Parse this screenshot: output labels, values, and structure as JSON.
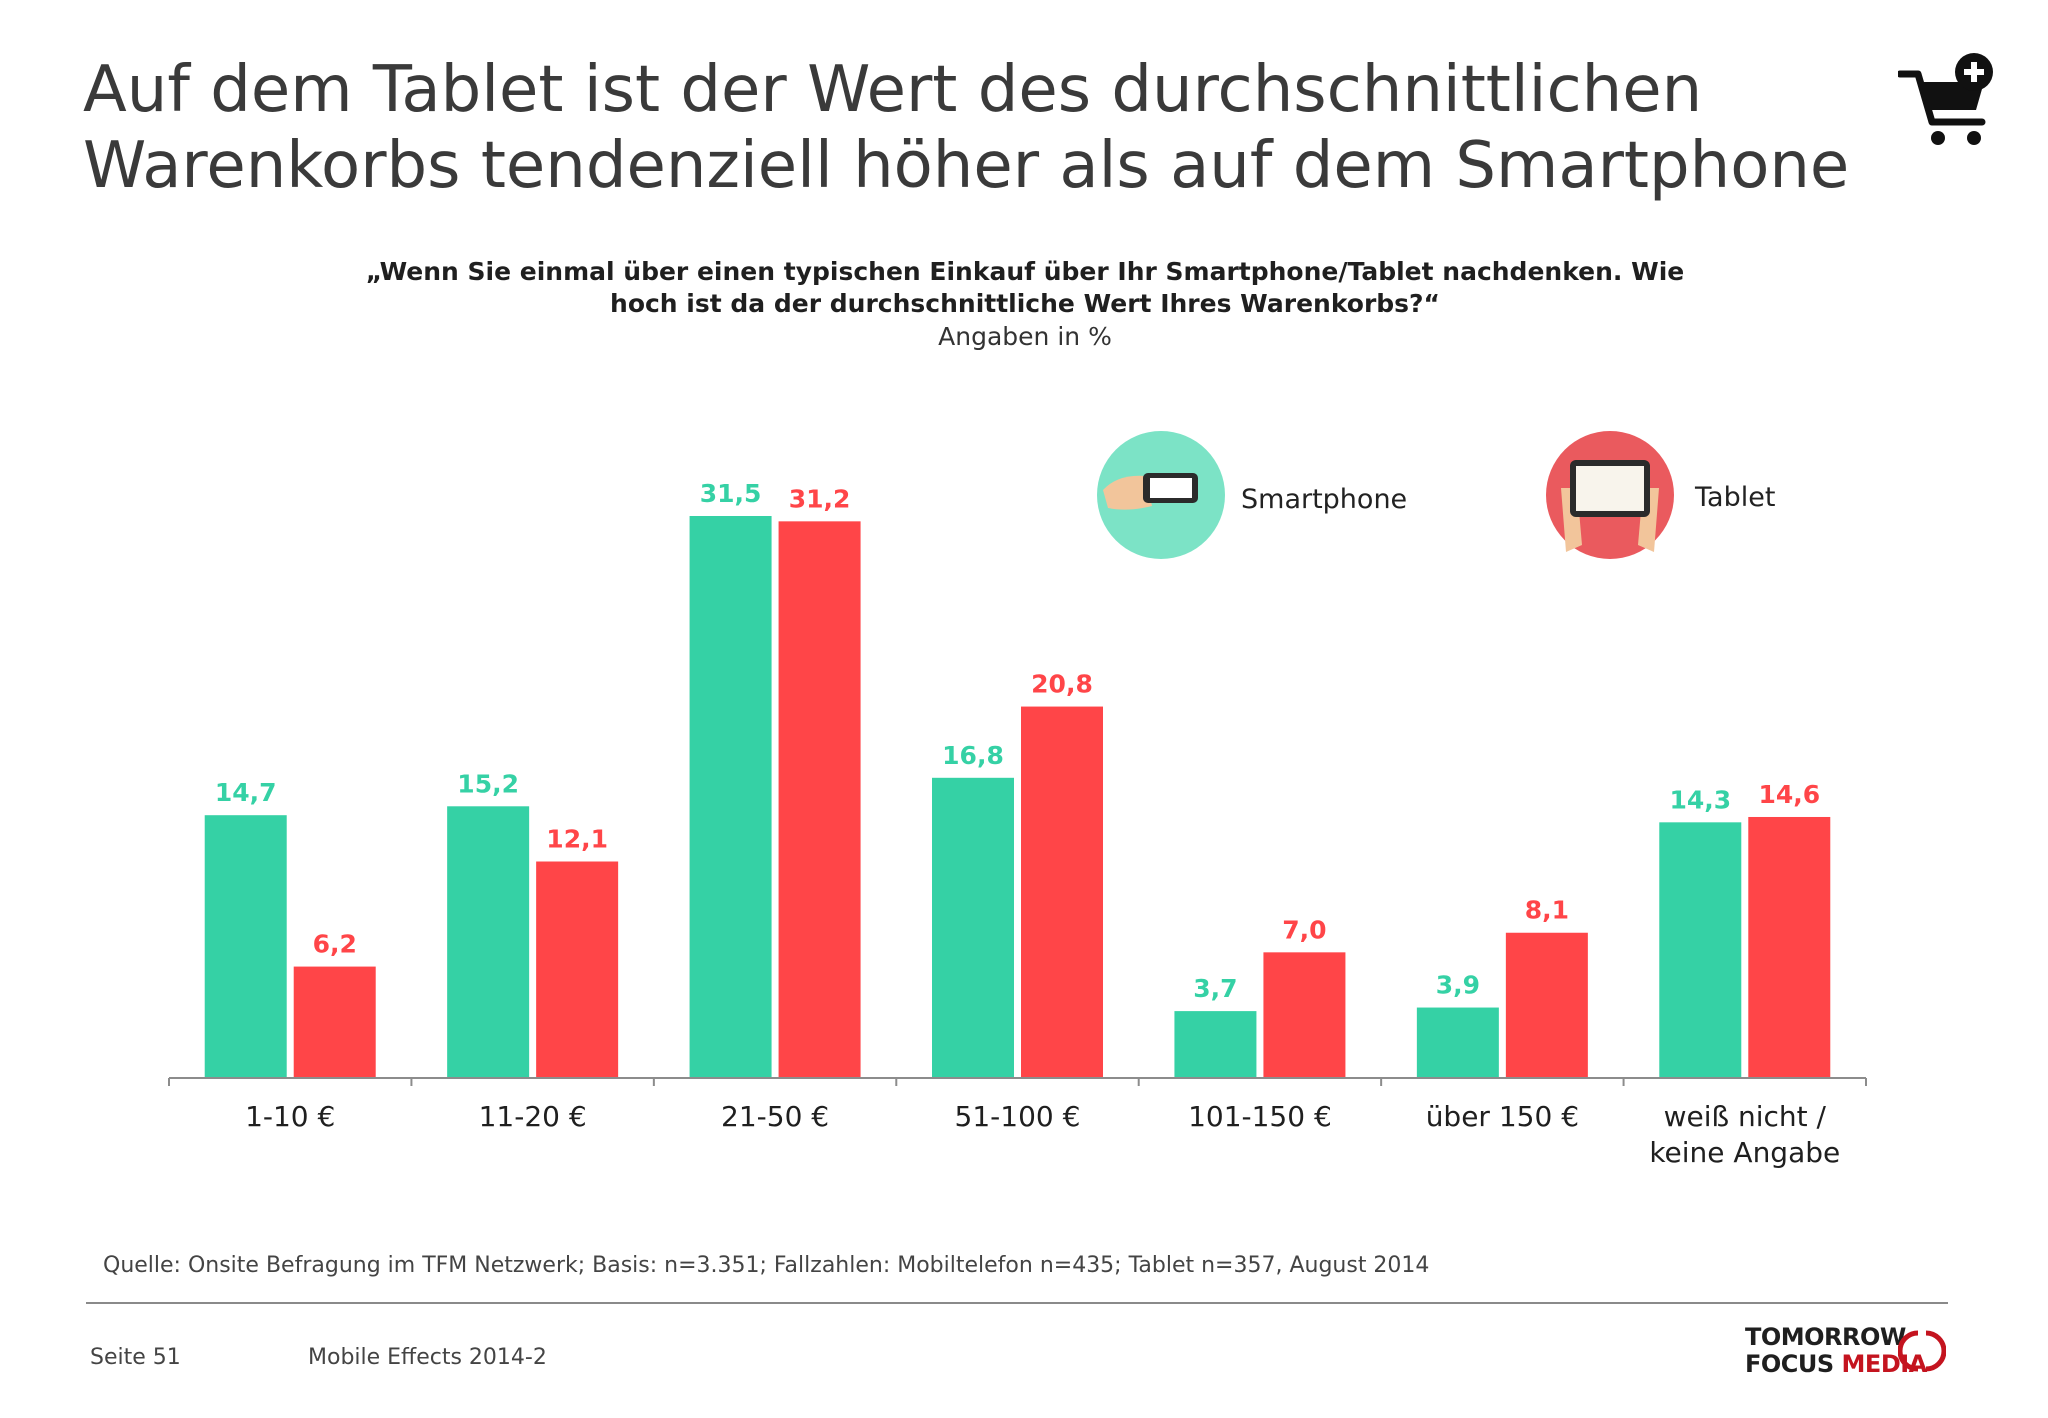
{
  "header": {
    "title_line1": "Auf dem Tablet ist der Wert des durchschnittlichen",
    "title_line2": "Warenkorbs tendenziell höher als auf dem Smartphone",
    "icon": "shopping-cart-add-icon"
  },
  "question": {
    "line1": "„Wenn Sie einmal über einen typischen Einkauf über Ihr Smartphone/Tablet nachdenken. Wie",
    "line2": "hoch ist da der durchschnittliche Wert Ihres Warenkorbs?“",
    "unit": "Angaben in %"
  },
  "colors": {
    "smartphone": "#35d1a5",
    "tablet": "#ff4548",
    "smartphone_circle": "#7ce3c6",
    "tablet_circle": "#ea5a5e"
  },
  "legend": {
    "smartphone": "Smartphone",
    "tablet": "Tablet",
    "smartphone_icon": "hand-holding-smartphone-icon",
    "tablet_icon": "hands-holding-tablet-icon"
  },
  "chart_data": {
    "type": "bar",
    "categories": [
      "1-10 €",
      "11-20 €",
      "21-50 €",
      "51-100 €",
      "101-150 €",
      "über 150 €",
      "weiß nicht /\nkeine Angabe"
    ],
    "series": [
      {
        "name": "Smartphone",
        "values": [
          14.7,
          15.2,
          31.5,
          16.8,
          3.7,
          3.9,
          14.3
        ],
        "labels": [
          "14,7",
          "15,2",
          "31,5",
          "16,8",
          "3,7",
          "3,9",
          "14,3"
        ]
      },
      {
        "name": "Tablet",
        "values": [
          6.2,
          12.1,
          31.2,
          20.8,
          7.0,
          8.1,
          14.6
        ],
        "labels": [
          "6,2",
          "12,1",
          "31,2",
          "20,8",
          "7,0",
          "8,1",
          "14,6"
        ]
      }
    ],
    "ylim": [
      0,
      31.5
    ],
    "grid": false,
    "legend_position": "top-right"
  },
  "footer": {
    "source": "Quelle: Onsite Befragung im TFM Netzwerk; Basis: n=3.351; Fallzahlen: Mobiltelefon n=435; Tablet n=357, August 2014",
    "page": "Seite 51",
    "doc_title": "Mobile Effects 2014-2",
    "brand_line1": "TOMORROW",
    "brand_line2a": "FOCUS ",
    "brand_line2b": "MEDIA"
  }
}
